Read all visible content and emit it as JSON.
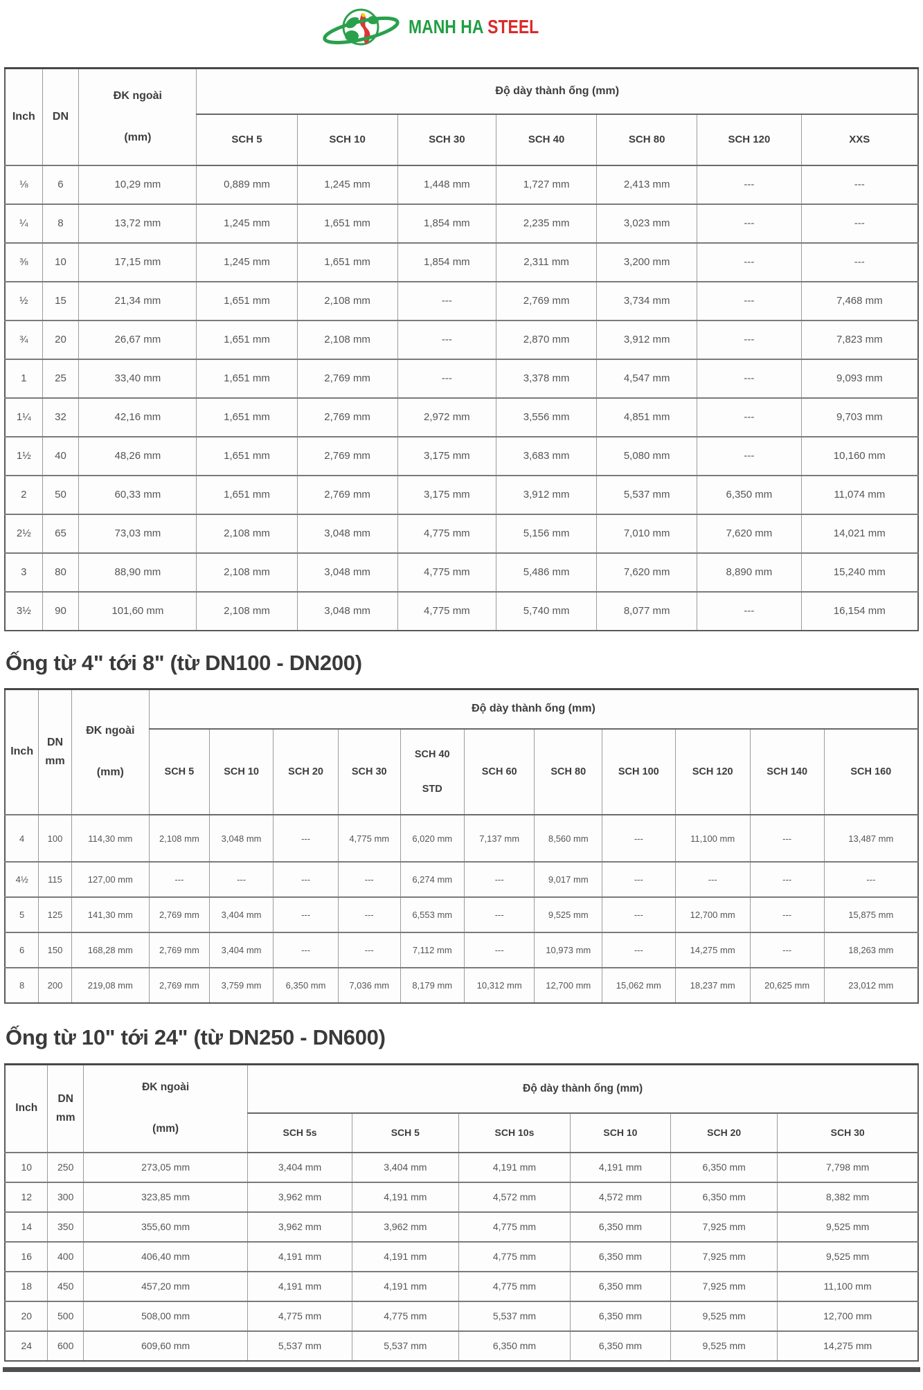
{
  "brand": {
    "green_text": "MANH HA",
    "red_text": "STEEL"
  },
  "colors": {
    "brand_green": "#1f9e41",
    "brand_red": "#da2a2a",
    "vietnam_red": "#e03434",
    "star_yellow": "#ffd400",
    "heading_text": "#3a3a3a",
    "cell_text": "#555555",
    "border_gray": "#9b9b9b"
  },
  "section_titles": {
    "t2": "Ống từ 4\" tới 8\" (từ DN100 - DN200)",
    "t3": "Ống từ 10\" tới 24\" (từ DN250 - DN600)"
  },
  "tables": [
    {
      "name": "pipe-size-table-small",
      "headers": {
        "inch": "Inch",
        "dn": "DN",
        "od": "ĐK ngoài\n(mm)",
        "group": "Độ dày thành ống (mm)",
        "sch": [
          "SCH 5",
          "SCH 10",
          "SCH 30",
          "SCH 40",
          "SCH 80",
          "SCH 120",
          "XXS"
        ]
      },
      "rows": [
        {
          "inch": "⅛",
          "dn": "6",
          "od": "10,29 mm",
          "vals": [
            "0,889 mm",
            "1,245 mm",
            "1,448 mm",
            "1,727 mm",
            "2,413 mm",
            "---",
            "---"
          ]
        },
        {
          "inch": "¼",
          "dn": "8",
          "od": "13,72 mm",
          "vals": [
            "1,245 mm",
            "1,651 mm",
            "1,854 mm",
            "2,235 mm",
            "3,023 mm",
            "---",
            "---"
          ]
        },
        {
          "inch": "⅜",
          "dn": "10",
          "od": "17,15 mm",
          "vals": [
            "1,245 mm",
            "1,651 mm",
            "1,854 mm",
            "2,311 mm",
            "3,200 mm",
            "---",
            "---"
          ]
        },
        {
          "inch": "½",
          "dn": "15",
          "od": "21,34 mm",
          "align": "left",
          "vals": [
            "1,651 mm",
            "2,108 mm",
            "---",
            "2,769 mm",
            "3,734 mm",
            "---",
            "7,468 mm"
          ]
        },
        {
          "inch": "¾",
          "dn": "20",
          "od": "26,67 mm",
          "vals": [
            "1,651 mm",
            "2,108 mm",
            "---",
            "2,870 mm",
            "3,912 mm",
            "---",
            "7,823 mm"
          ]
        },
        {
          "inch": "1",
          "dn": "25",
          "od": "33,40 mm",
          "vals": [
            "1,651 mm",
            "2,769 mm",
            "---",
            "3,378 mm",
            "4,547 mm",
            "---",
            "9,093 mm"
          ]
        },
        {
          "inch": "1¼",
          "dn": "32",
          "od": "42,16 mm",
          "vals": [
            "1,651 mm",
            "2,769 mm",
            "2,972 mm",
            "3,556 mm",
            "4,851 mm",
            "---",
            "9,703 mm"
          ]
        },
        {
          "inch": "1½",
          "dn": "40",
          "od": "48,26 mm",
          "vals": [
            "1,651 mm",
            "2,769 mm",
            "3,175 mm",
            "3,683 mm",
            "5,080 mm",
            "---",
            "10,160 mm"
          ]
        },
        {
          "inch": "2",
          "dn": "50",
          "od": "60,33 mm",
          "vals": [
            "1,651 mm",
            "2,769 mm",
            "3,175 mm",
            "3,912 mm",
            "5,537 mm",
            "6,350 mm",
            "11,074 mm"
          ]
        },
        {
          "inch": "2½",
          "dn": "65",
          "od": "73,03 mm",
          "vals": [
            "2,108 mm",
            "3,048 mm",
            "4,775 mm",
            "5,156 mm",
            "7,010 mm",
            "7,620 mm",
            "14,021 mm"
          ]
        },
        {
          "inch": "3",
          "dn": "80",
          "od": "88,90 mm",
          "vals": [
            "2,108 mm",
            "3,048 mm",
            "4,775 mm",
            "5,486 mm",
            "7,620 mm",
            "8,890 mm",
            "15,240 mm"
          ]
        },
        {
          "inch": "3½",
          "dn": "90",
          "od": "101,60 mm",
          "vals": [
            "2,108 mm",
            "3,048 mm",
            "4,775 mm",
            "5,740 mm",
            "8,077 mm",
            "---",
            "16,154 mm"
          ]
        }
      ]
    },
    {
      "name": "pipe-size-table-medium",
      "headers": {
        "inch": "Inch",
        "dn": "DN\nmm",
        "od": "ĐK ngoài\n(mm)",
        "group": "Độ dày thành ống (mm)",
        "sch": [
          "SCH 5",
          "SCH 10",
          "SCH 20",
          "SCH 30",
          "SCH 40\nSTD",
          "SCH 60",
          "SCH 80",
          "SCH 100",
          "SCH 120",
          "SCH 140",
          "SCH 160"
        ]
      },
      "rows": [
        {
          "inch": "4",
          "dn": "100",
          "od": "114,30 mm",
          "vals": [
            "2,108 mm",
            "3,048 mm",
            "---",
            "4,775 mm",
            "6,020 mm",
            "7,137 mm",
            "8,560 mm",
            "---",
            "11,100 mm",
            "---",
            "13,487 mm"
          ]
        },
        {
          "inch": "4½",
          "dn": "115",
          "od": "127,00 mm",
          "vals": [
            "---",
            "---",
            "---",
            "---",
            "6,274 mm",
            "---",
            "9,017 mm",
            "---",
            "---",
            "---",
            "---"
          ]
        },
        {
          "inch": "5",
          "dn": "125",
          "od": "141,30 mm",
          "vals": [
            "2,769 mm",
            "3,404 mm",
            "---",
            "---",
            "6,553 mm",
            "---",
            "9,525 mm",
            "---",
            "12,700 mm",
            "---",
            "15,875 mm"
          ]
        },
        {
          "inch": "6",
          "dn": "150",
          "od": "168,28 mm",
          "vals": [
            "2,769 mm",
            "3,404 mm",
            "---",
            "---",
            "7,112 mm",
            "---",
            "10,973 mm",
            "---",
            "14,275 mm",
            "---",
            "18,263 mm"
          ]
        },
        {
          "inch": "8",
          "dn": "200",
          "od": "219,08 mm",
          "vals": [
            "2,769 mm",
            "3,759 mm",
            "6,350 mm",
            "7,036 mm",
            "8,179 mm",
            "10,312 mm",
            "12,700 mm",
            "15,062 mm",
            "18,237 mm",
            "20,625 mm",
            "23,012 mm"
          ]
        }
      ]
    },
    {
      "name": "pipe-size-table-large",
      "headers": {
        "inch": "Inch",
        "dn": "DN\nmm",
        "od": "ĐK ngoài\n(mm)",
        "group": "Độ dày thành ống (mm)",
        "sch": [
          "SCH 5s",
          "SCH 5",
          "SCH 10s",
          "SCH 10",
          "SCH 20",
          "SCH 30"
        ]
      },
      "rows": [
        {
          "inch": "10",
          "dn": "250",
          "od": "273,05 mm",
          "vals": [
            "3,404 mm",
            "3,404 mm",
            "4,191 mm",
            "4,191 mm",
            "6,350 mm",
            "7,798 mm"
          ]
        },
        {
          "inch": "12",
          "dn": "300",
          "od": "323,85 mm",
          "vals": [
            "3,962 mm",
            "4,191 mm",
            "4,572 mm",
            "4,572 mm",
            "6,350 mm",
            "8,382 mm"
          ]
        },
        {
          "inch": "14",
          "dn": "350",
          "od": "355,60 mm",
          "vals": [
            "3,962 mm",
            "3,962 mm",
            "4,775 mm",
            "6,350 mm",
            "7,925 mm",
            "9,525 mm"
          ]
        },
        {
          "inch": "16",
          "dn": "400",
          "od": "406,40 mm",
          "vals": [
            "4,191 mm",
            "4,191 mm",
            "4,775 mm",
            "6,350 mm",
            "7,925 mm",
            "9,525 mm"
          ]
        },
        {
          "inch": "18",
          "dn": "450",
          "od": "457,20 mm",
          "vals": [
            "4,191 mm",
            "4,191 mm",
            "4,775 mm",
            "6,350 mm",
            "7,925 mm",
            "11,100 mm"
          ]
        },
        {
          "inch": "20",
          "dn": "500",
          "od": "508,00 mm",
          "vals": [
            "4,775 mm",
            "4,775 mm",
            "5,537 mm",
            "6,350 mm",
            "9,525 mm",
            "12,700 mm"
          ]
        },
        {
          "inch": "24",
          "dn": "600",
          "od": "609,60 mm",
          "vals": [
            "5,537 mm",
            "5,537 mm",
            "6,350 mm",
            "6,350 mm",
            "9,525 mm",
            "14,275 mm"
          ]
        }
      ]
    }
  ]
}
